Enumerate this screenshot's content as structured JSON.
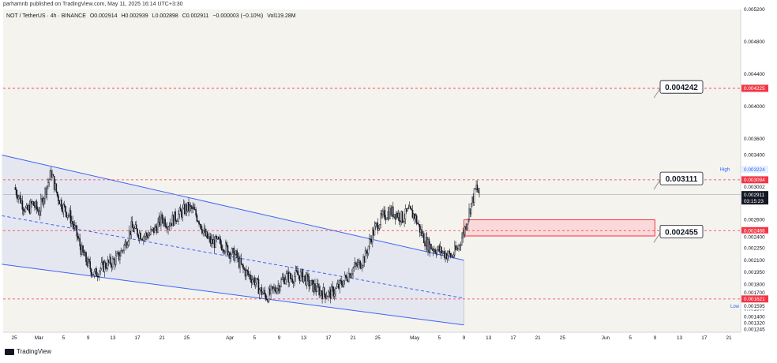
{
  "header": {
    "publisher": "parhamnb published on TradingView.com, May 11, 2025 16:14 UTC+3:30"
  },
  "legend": {
    "symbol": "NOT / TetherUS · 4h · BINANCE",
    "open": "O0.002914",
    "high": "H0.002939",
    "low": "L0.002898",
    "close": "C0.002911",
    "change": "−0.000003 (−0.10%)",
    "volume": "Vol119.28M"
  },
  "footer": {
    "brand": "TradingView"
  },
  "colors": {
    "background": "#f5f3ee",
    "candle": "#131722",
    "channel": "#3d63f5",
    "channel_fill": "#e3e6ef",
    "level": "#f23645",
    "zone_fill": "#fbd9db",
    "axis_text": "#131722"
  },
  "chart_data": {
    "type": "candlestick",
    "symbol": "NOT / TetherUS",
    "timeframe": "4h",
    "exchange": "BINANCE",
    "ylim": [
      0.00121,
      0.0052
    ],
    "y_ticks": [
      "0.005200",
      "0.004800",
      "0.004400",
      "0.004000",
      "0.003600",
      "0.003400",
      "0.003200",
      "0.002600",
      "0.002250",
      "0.002100",
      "0.001950",
      "0.001800",
      "0.001700",
      "0.001500",
      "0.001400",
      "0.001320",
      "0.001245"
    ],
    "x_ticks": [
      {
        "label": "25",
        "date": "2025-02-25"
      },
      {
        "label": "Mar",
        "date": "2025-03-01"
      },
      {
        "label": "5",
        "date": "2025-03-05"
      },
      {
        "label": "9",
        "date": "2025-03-09"
      },
      {
        "label": "13",
        "date": "2025-03-13"
      },
      {
        "label": "17",
        "date": "2025-03-17"
      },
      {
        "label": "21",
        "date": "2025-03-21"
      },
      {
        "label": "25",
        "date": "2025-03-25"
      },
      {
        "label": "Apr",
        "date": "2025-04-01"
      },
      {
        "label": "5",
        "date": "2025-04-05"
      },
      {
        "label": "9",
        "date": "2025-04-09"
      },
      {
        "label": "13",
        "date": "2025-04-13"
      },
      {
        "label": "17",
        "date": "2025-04-17"
      },
      {
        "label": "21",
        "date": "2025-04-21"
      },
      {
        "label": "25",
        "date": "2025-04-25"
      },
      {
        "label": "May",
        "date": "2025-05-01"
      },
      {
        "label": "5",
        "date": "2025-05-05"
      },
      {
        "label": "9",
        "date": "2025-05-09"
      },
      {
        "label": "13",
        "date": "2025-05-13"
      },
      {
        "label": "17",
        "date": "2025-05-17"
      },
      {
        "label": "21",
        "date": "2025-05-21"
      },
      {
        "label": "25",
        "date": "2025-05-25"
      },
      {
        "label": "Jun",
        "date": "2025-06-01"
      },
      {
        "label": "5",
        "date": "2025-06-05"
      },
      {
        "label": "9",
        "date": "2025-06-09"
      },
      {
        "label": "13",
        "date": "2025-06-13"
      },
      {
        "label": "17",
        "date": "2025-06-17"
      },
      {
        "label": "21",
        "date": "2025-06-21"
      }
    ],
    "price_path": [
      [
        "2025-02-25",
        0.003
      ],
      [
        "2025-02-26",
        0.00285
      ],
      [
        "2025-02-27",
        0.0027
      ],
      [
        "2025-02-28",
        0.0028
      ],
      [
        "2025-03-01",
        0.0027
      ],
      [
        "2025-03-02",
        0.00295
      ],
      [
        "2025-03-03",
        0.00318
      ],
      [
        "2025-03-04",
        0.0029
      ],
      [
        "2025-03-05",
        0.00275
      ],
      [
        "2025-03-06",
        0.00265
      ],
      [
        "2025-03-07",
        0.00245
      ],
      [
        "2025-03-08",
        0.0022
      ],
      [
        "2025-03-09",
        0.00205
      ],
      [
        "2025-03-10",
        0.00192
      ],
      [
        "2025-03-11",
        0.002
      ],
      [
        "2025-03-12",
        0.00205
      ],
      [
        "2025-03-13",
        0.00208
      ],
      [
        "2025-03-14",
        0.00215
      ],
      [
        "2025-03-15",
        0.0023
      ],
      [
        "2025-03-16",
        0.0025
      ],
      [
        "2025-03-17",
        0.00245
      ],
      [
        "2025-03-18",
        0.0024
      ],
      [
        "2025-03-19",
        0.00242
      ],
      [
        "2025-03-20",
        0.0025
      ],
      [
        "2025-03-21",
        0.00262
      ],
      [
        "2025-03-22",
        0.00255
      ],
      [
        "2025-03-23",
        0.00262
      ],
      [
        "2025-03-24",
        0.00268
      ],
      [
        "2025-03-25",
        0.00275
      ],
      [
        "2025-03-26",
        0.00272
      ],
      [
        "2025-03-27",
        0.0026
      ],
      [
        "2025-03-28",
        0.0024
      ],
      [
        "2025-03-29",
        0.00232
      ],
      [
        "2025-03-30",
        0.00232
      ],
      [
        "2025-03-31",
        0.00228
      ],
      [
        "2025-04-01",
        0.0022
      ],
      [
        "2025-04-02",
        0.00215
      ],
      [
        "2025-04-03",
        0.002
      ],
      [
        "2025-04-04",
        0.00192
      ],
      [
        "2025-04-05",
        0.00185
      ],
      [
        "2025-04-06",
        0.00172
      ],
      [
        "2025-04-07",
        0.00165
      ],
      [
        "2025-04-08",
        0.00172
      ],
      [
        "2025-04-09",
        0.0018
      ],
      [
        "2025-04-10",
        0.0019
      ],
      [
        "2025-04-11",
        0.00188
      ],
      [
        "2025-04-12",
        0.00192
      ],
      [
        "2025-04-13",
        0.0019
      ],
      [
        "2025-04-14",
        0.0018
      ],
      [
        "2025-04-15",
        0.00175
      ],
      [
        "2025-04-16",
        0.0017
      ],
      [
        "2025-04-17",
        0.00168
      ],
      [
        "2025-04-18",
        0.00172
      ],
      [
        "2025-04-19",
        0.0018
      ],
      [
        "2025-04-20",
        0.0019
      ],
      [
        "2025-04-21",
        0.002
      ],
      [
        "2025-04-22",
        0.00205
      ],
      [
        "2025-04-23",
        0.00215
      ],
      [
        "2025-04-24",
        0.0024
      ],
      [
        "2025-04-25",
        0.00255
      ],
      [
        "2025-04-26",
        0.00265
      ],
      [
        "2025-04-27",
        0.0027
      ],
      [
        "2025-04-28",
        0.00268
      ],
      [
        "2025-04-29",
        0.00262
      ],
      [
        "2025-04-30",
        0.0027
      ],
      [
        "2025-05-01",
        0.00265
      ],
      [
        "2025-05-02",
        0.00245
      ],
      [
        "2025-05-03",
        0.0023
      ],
      [
        "2025-05-04",
        0.00225
      ],
      [
        "2025-05-05",
        0.00222
      ],
      [
        "2025-05-06",
        0.00218
      ],
      [
        "2025-05-07",
        0.00215
      ],
      [
        "2025-05-08",
        0.00225
      ],
      [
        "2025-05-09",
        0.00245
      ],
      [
        "2025-05-10",
        0.00275
      ],
      [
        "2025-05-11",
        0.003
      ],
      [
        "2025-05-11T12:00",
        0.002911
      ]
    ],
    "channel": {
      "upper": [
        [
          "2025-02-23",
          0.0034
        ],
        [
          "2025-05-09",
          0.0021
        ]
      ],
      "middle": [
        [
          "2025-02-23",
          0.00265
        ],
        [
          "2025-05-09",
          0.00163
        ]
      ],
      "lower": [
        [
          "2025-02-23",
          0.00205
        ],
        [
          "2025-05-09",
          0.0013
        ]
      ]
    },
    "horizontal_levels": [
      {
        "price": 0.004225,
        "label": "0.004225",
        "style": "dashed",
        "color": "#f23645"
      },
      {
        "price": 0.003094,
        "label": "0.003094",
        "style": "dashed",
        "color": "#f23645"
      },
      {
        "price": 0.002466,
        "label": "0.002466",
        "style": "dashed",
        "color": "#f23645"
      },
      {
        "price": 0.001621,
        "label": "0.001621",
        "style": "dashed",
        "color": "#f23645"
      }
    ],
    "zone": {
      "from": "2025-05-09",
      "to": "2025-06-09",
      "top": 0.0026,
      "bottom": 0.0024
    },
    "callouts": [
      {
        "label": "0.004242",
        "price": 0.004242
      },
      {
        "label": "0.003111",
        "price": 0.003111
      },
      {
        "label": "0.002455",
        "price": 0.002455
      }
    ],
    "axis_badges": [
      {
        "label": "0.004225",
        "kind": "level"
      },
      {
        "label": "0.003094",
        "kind": "level"
      },
      {
        "label": "0.003002",
        "kind": "plain"
      },
      {
        "label": "0.002911",
        "kind": "current"
      },
      {
        "label": "03:15:23",
        "kind": "countdown"
      },
      {
        "label": "0.002466",
        "kind": "level"
      },
      {
        "label": "0.002400",
        "kind": "plain"
      },
      {
        "label": "0.001621",
        "kind": "level"
      },
      {
        "label": "0.001595",
        "kind": "plain"
      }
    ],
    "extremes": {
      "high": {
        "tag": "High",
        "value": "0.003224"
      },
      "low": {
        "tag": "Low",
        "value": "0.001595"
      }
    },
    "last_price": 0.002911
  }
}
